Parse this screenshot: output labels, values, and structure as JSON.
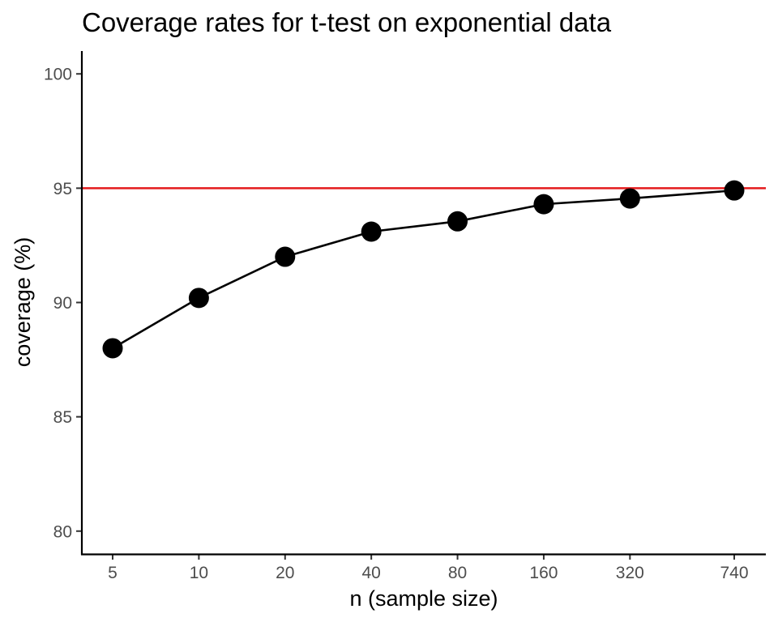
{
  "chart_data": {
    "type": "line",
    "title": "Coverage rates for t-test on exponential data",
    "xlabel": "n (sample size)",
    "ylabel": "coverage (%)",
    "x_scale": "log",
    "x": [
      5,
      10,
      20,
      40,
      80,
      160,
      320,
      740
    ],
    "x_tick_labels": [
      "5",
      "10",
      "20",
      "40",
      "80",
      "160",
      "320",
      "740"
    ],
    "y_ticks": [
      80,
      85,
      90,
      95,
      100
    ],
    "ylim": [
      79,
      101
    ],
    "series": [
      {
        "values": [
          88.0,
          90.2,
          92.0,
          93.1,
          93.55,
          94.3,
          94.55,
          94.9
        ]
      }
    ],
    "reference_line": {
      "y": 95,
      "color": "#e41a1c"
    },
    "line_color": "#000000",
    "grid": false
  }
}
